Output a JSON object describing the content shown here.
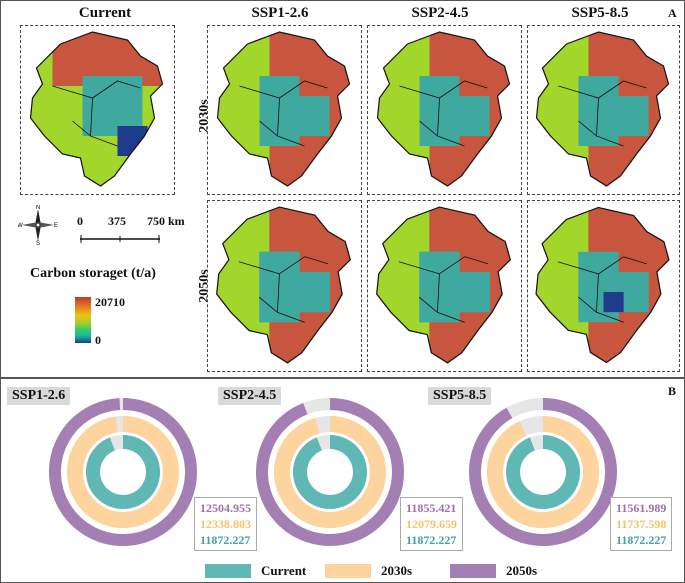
{
  "panel_a": {
    "letter": "A",
    "column_titles": [
      "Current",
      "SSP1-2.6",
      "SSP2-4.5",
      "SSP5-8.5"
    ],
    "row_titles": [
      "2030s",
      "2050s"
    ],
    "scale": {
      "zero": "0",
      "mid": "375",
      "end": "750 km"
    },
    "legend": {
      "title": "Carbon storaget (t/a)",
      "max": "20710",
      "min": "0"
    },
    "compass_letters": {
      "n": "N",
      "s": "S",
      "e": "E",
      "w": "W"
    }
  },
  "panel_b": {
    "letter": "B",
    "charts": [
      {
        "scenario": "SSP1-2.6",
        "v2050": "12504.955",
        "v2030": "12338.803",
        "current": "11872.227",
        "v2050_num": 12504.955,
        "v2030_num": 12338.803,
        "current_num": 11872.227
      },
      {
        "scenario": "SSP2-4.5",
        "v2050": "11855.421",
        "v2030": "12079.659",
        "current": "11872.227",
        "v2050_num": 11855.421,
        "v2030_num": 12079.659,
        "current_num": 11872.227
      },
      {
        "scenario": "SSP5-8.5",
        "v2050": "11561.989",
        "v2030": "11737.598",
        "current": "11872.227",
        "v2050_num": 11561.989,
        "v2030_num": 11737.598,
        "current_num": 11872.227
      }
    ],
    "legend": [
      {
        "label": "Current",
        "color": "#5fb8b3"
      },
      {
        "label": "2030s",
        "color": "#fdd49e"
      },
      {
        "label": "2050s",
        "color": "#a47fb4"
      }
    ]
  },
  "colors": {
    "high": "#c8553d",
    "mid": "#a3d62b",
    "low": "#3fa9a0",
    "deep": "#1f3b8c"
  }
}
